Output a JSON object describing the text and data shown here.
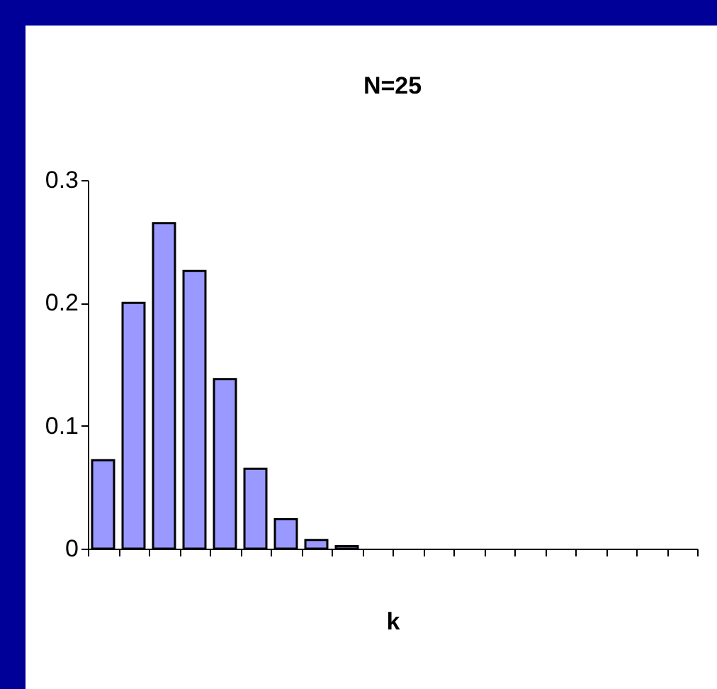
{
  "chart_data": {
    "type": "bar",
    "title": "N=25",
    "xlabel": "k",
    "categories": [
      null,
      null,
      null,
      null,
      null,
      null,
      null,
      null,
      null,
      null,
      null,
      null,
      null,
      null,
      null,
      null,
      null,
      null,
      null,
      null
    ],
    "values": [
      0.072,
      0.2,
      0.265,
      0.226,
      0.138,
      0.065,
      0.024,
      0.007,
      0.002,
      null,
      null,
      null,
      null,
      null,
      null,
      null,
      null,
      null,
      null,
      null
    ],
    "color": "#9999ff",
    "ylim": [
      0,
      0.3
    ],
    "yticks": [
      0,
      0.1,
      0.2,
      0.3
    ],
    "grid": false
  }
}
